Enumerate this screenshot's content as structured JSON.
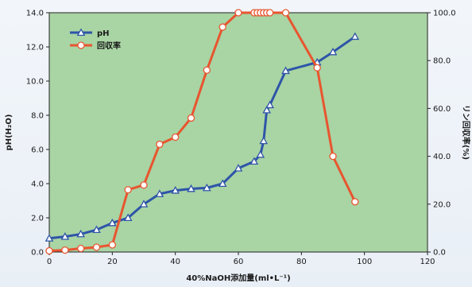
{
  "chart_data": {
    "type": "line",
    "colors": {
      "background": "#a9d4a4",
      "ph": "#2e55a8",
      "recovery": "#e8552f",
      "axis": "#222222"
    },
    "xlabel": "40%NaOH添加量(ml•L⁻¹)",
    "ylabel_left": "pH(H₂O)",
    "ylabel_right": "リン回収率(%)",
    "xlim": [
      0,
      120
    ],
    "ylim_left": [
      0,
      14
    ],
    "ylim_right": [
      0,
      100
    ],
    "x_ticks": [
      "0",
      "20",
      "40",
      "60",
      "80",
      "100",
      "120"
    ],
    "y_left_ticks": [
      "0.0",
      "2.0",
      "4.0",
      "6.0",
      "8.0",
      "10.0",
      "12.0",
      "14.0"
    ],
    "y_right_ticks": [
      "0.0",
      "20.0",
      "40.0",
      "60.0",
      "80.0",
      "100.0"
    ],
    "legend_position": "top-left",
    "series": [
      {
        "name": "pH",
        "axis": "left",
        "marker": "triangle",
        "x": [
          0,
          5,
          10,
          15,
          20,
          25,
          30,
          35,
          40,
          45,
          50,
          55,
          60,
          65,
          67,
          68,
          69,
          70,
          75,
          85,
          90,
          97
        ],
        "y": [
          0.8,
          0.9,
          1.05,
          1.3,
          1.7,
          2.0,
          2.8,
          3.4,
          3.6,
          3.7,
          3.75,
          4.0,
          4.9,
          5.3,
          5.7,
          6.5,
          8.3,
          8.6,
          10.6,
          11.1,
          11.7,
          12.6
        ]
      },
      {
        "name": "回収率",
        "axis": "right",
        "marker": "circle",
        "x": [
          0,
          5,
          10,
          15,
          20,
          25,
          30,
          35,
          40,
          45,
          50,
          55,
          60,
          65,
          66,
          67,
          68,
          69,
          70,
          75,
          85,
          90,
          97
        ],
        "y": [
          0.5,
          0.8,
          1.5,
          2,
          3,
          26,
          28,
          45,
          48,
          56,
          76,
          94,
          100,
          100,
          100,
          100,
          100,
          100,
          100,
          100,
          77,
          40,
          21
        ]
      }
    ]
  }
}
